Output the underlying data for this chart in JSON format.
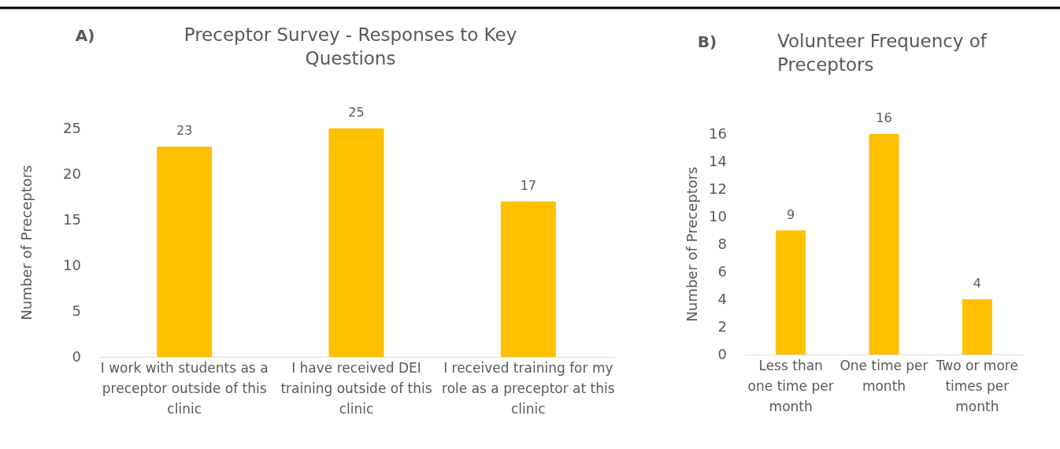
{
  "chart_data": [
    {
      "type": "bar",
      "title": "Preceptor Survey - Responses to Key Questions",
      "annotations": [
        "A)"
      ],
      "ylabel": "Number of Preceptors",
      "categories": [
        "I work with students as a preceptor outside of this clinic",
        "I have received DEI training outside of this clinic",
        "I received training for my role as a preceptor at this clinic"
      ],
      "values": [
        23,
        25,
        17
      ],
      "color": "#ffc000",
      "ylim": [
        0,
        25
      ],
      "yticks": [
        0,
        5,
        10,
        15,
        20,
        25
      ],
      "data_labels": true
    },
    {
      "type": "bar",
      "title": "Volunteer Frequency of Preceptors",
      "annotations": [
        "B)"
      ],
      "ylabel": "Number of Preceptors",
      "categories": [
        "Less than one time per month",
        "One time per month",
        "Two or more times per month"
      ],
      "values": [
        9,
        16,
        4
      ],
      "color": "#ffc000",
      "ylim": [
        0,
        16
      ],
      "yticks": [
        0,
        2,
        4,
        6,
        8,
        10,
        12,
        14,
        16
      ],
      "data_labels": true
    }
  ]
}
